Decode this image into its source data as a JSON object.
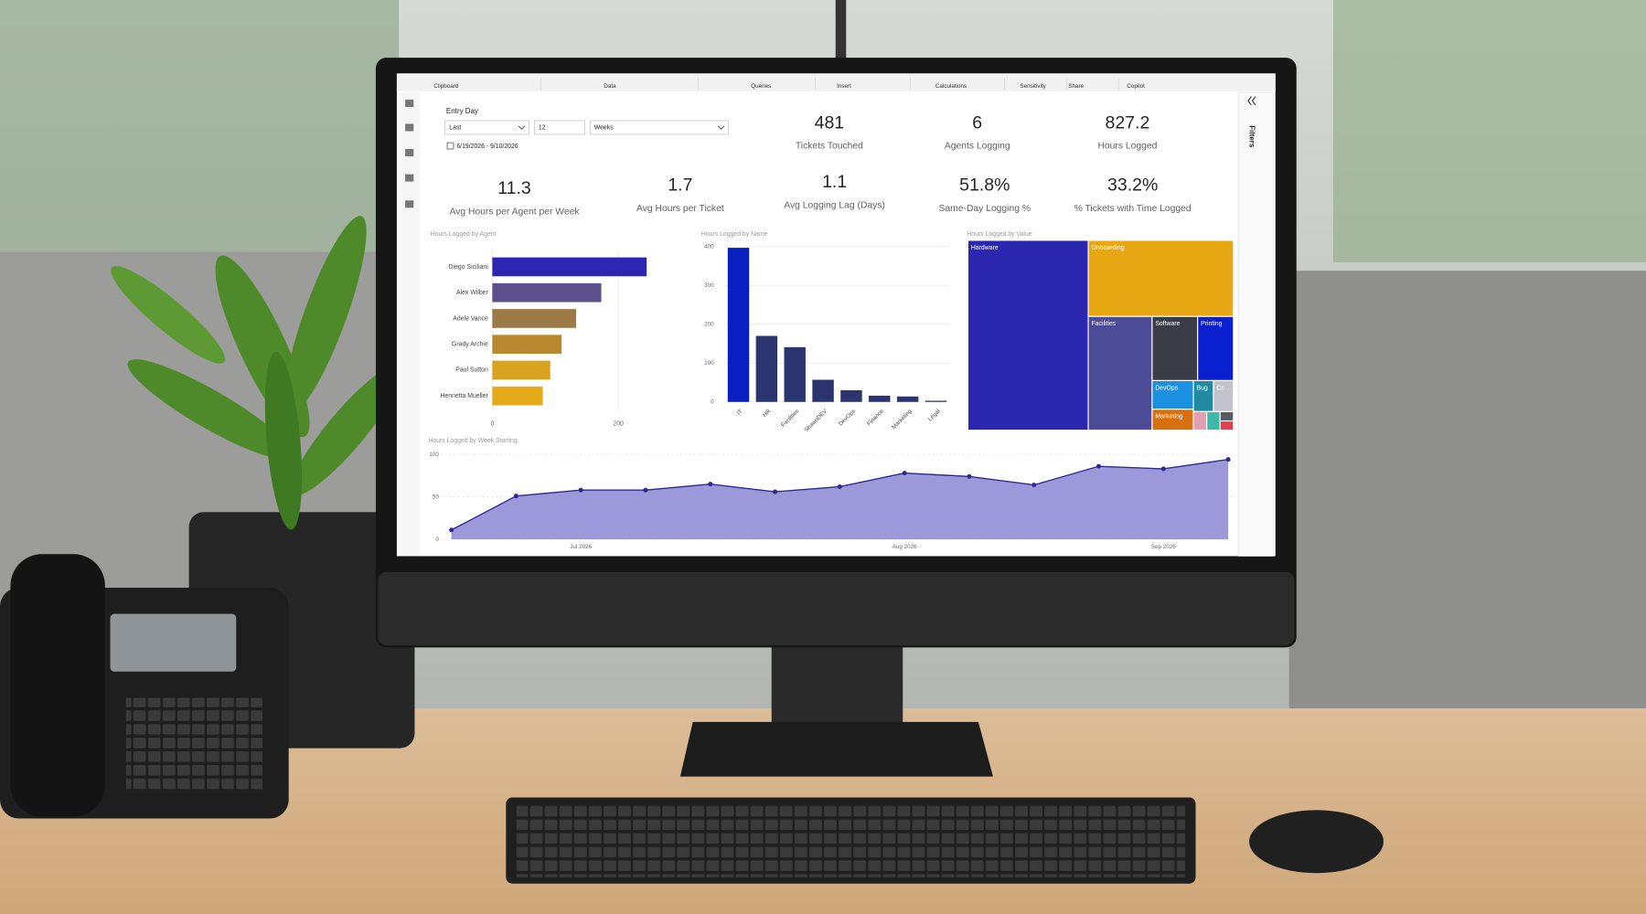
{
  "ribbon": {
    "tabs": [
      "Clipboard",
      "Data",
      "Queries",
      "Insert",
      "Calculations",
      "Sensitivity",
      "Share",
      "Copilot"
    ]
  },
  "slicer": {
    "label": "Entry Day",
    "mode": "Last",
    "count": "12",
    "unit": "Weeks",
    "range": "6/19/2026 - 9/10/2026"
  },
  "filters_pane": {
    "title": "Filters"
  },
  "kpis": [
    {
      "value": "481",
      "label": "Tickets Touched"
    },
    {
      "value": "6",
      "label": "Agents Logging"
    },
    {
      "value": "827.2",
      "label": "Hours Logged"
    },
    {
      "value": "11.3",
      "label": "Avg Hours per Agent per Week"
    },
    {
      "value": "1.7",
      "label": "Avg Hours per Ticket"
    },
    {
      "value": "1.1",
      "label": "Avg Logging Lag (Days)"
    },
    {
      "value": "51.8%",
      "label": "Same-Day Logging %"
    },
    {
      "value": "33.2%",
      "label": "% Tickets with Time Logged"
    }
  ],
  "chart_data": [
    {
      "type": "bar",
      "title": "Hours Logged by Agent",
      "categories": [
        "Diego Siciliani",
        "Alex Wilber",
        "Adele Vance",
        "Grady Archie",
        "Paul Sutton",
        "Henrietta Mueller"
      ],
      "values": [
        245,
        173,
        133,
        110,
        92,
        80
      ],
      "colors": [
        "#2c27b3",
        "#5c4f8c",
        "#9d7a48",
        "#b9882f",
        "#d9a21f",
        "#e7aa1a"
      ],
      "xlim": [
        0,
        300
      ],
      "xticks": [
        0,
        200
      ],
      "grid": true
    },
    {
      "type": "column",
      "title": "Hours Logged by Name",
      "categories": [
        "IT",
        "HR",
        "Facilities",
        "ShawnDEV",
        "DevOps",
        "Finance",
        "Marketing",
        "Legal"
      ],
      "values": [
        397,
        170,
        141,
        57,
        30,
        16,
        14,
        3
      ],
      "colors": [
        "#0a1fc2",
        "#2c3470",
        "#2c3470",
        "#2c3470",
        "#2c3470",
        "#2c3470",
        "#2c3470",
        "#2c3470"
      ],
      "ylim": [
        0,
        400
      ],
      "yticks": [
        0,
        100,
        200,
        300,
        400
      ],
      "grid": true
    },
    {
      "type": "treemap",
      "title": "Hours Logged by Value",
      "categories": [
        "Hardware",
        "Onboarding",
        "Facilities",
        "Software",
        "Printing",
        "DevOps",
        "Marketing",
        "Bug",
        "Co...",
        null,
        null,
        null,
        null
      ],
      "values": [
        368,
        178,
        117,
        47,
        37,
        19,
        14,
        10,
        10,
        4,
        4,
        2,
        2
      ],
      "colors": [
        "#2b26b0",
        "#e8a814",
        "#4c4b98",
        "#3a3d45",
        "#0a1fd0",
        "#1b8fe0",
        "#d9700f",
        "#1f8aa0",
        "#c2c2ca",
        "#e0a0b0",
        "#3fb8a8",
        "#555a60",
        "#e04050"
      ]
    },
    {
      "type": "area",
      "title": "Hours Logged by Week Starting",
      "categories": [
        null,
        null,
        "Jul 2026",
        null,
        null,
        null,
        null,
        "Aug 2026",
        null,
        null,
        null,
        "Sep 2026",
        null
      ],
      "values": [
        11,
        51,
        58,
        58,
        65,
        56,
        62,
        78,
        74,
        64,
        86,
        83,
        94
      ],
      "color": "#9d98da",
      "line_color": "#2f2b8c",
      "ylim": [
        0,
        100
      ],
      "yticks": [
        0,
        50,
        100
      ],
      "grid": true
    }
  ]
}
